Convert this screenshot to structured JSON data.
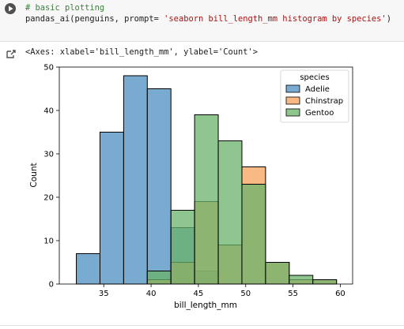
{
  "cell": {
    "run_icon": "play-icon",
    "code_comment": "# basic plotting",
    "code_call": "pandas_ai(penguins, prompt= ",
    "code_string": "'seaborn bill_length_mm histogram by species'",
    "code_close": ")"
  },
  "output": {
    "icon": "output-arrow-icon",
    "text": "<Axes: xlabel='bill_length_mm', ylabel='Count'>"
  },
  "chart_data": {
    "type": "histogram",
    "xlabel": "bill_length_mm",
    "ylabel": "Count",
    "xlim": [
      30.3,
      61.3
    ],
    "ylim": [
      0,
      50
    ],
    "xticks": [
      35,
      40,
      45,
      50,
      55,
      60
    ],
    "yticks": [
      0,
      10,
      20,
      30,
      40,
      50
    ],
    "bin_edges": [
      32.1,
      34.6,
      37.1,
      39.6,
      42.1,
      44.6,
      47.1,
      49.6,
      52.1,
      54.6,
      57.1,
      59.6
    ],
    "legend": {
      "title": "species",
      "position": "upper right"
    },
    "series": [
      {
        "name": "Adelie",
        "color": "#4c8fc0",
        "values": [
          7,
          35,
          48,
          45,
          13,
          3,
          0,
          0,
          0,
          0,
          0
        ]
      },
      {
        "name": "Chinstrap",
        "color": "#f5a15c",
        "values": [
          0,
          0,
          0,
          1,
          5,
          19,
          9,
          27,
          5,
          1,
          1
        ]
      },
      {
        "name": "Gentoo",
        "color": "#6ab36a",
        "values": [
          0,
          0,
          0,
          3,
          17,
          39,
          33,
          23,
          5,
          2,
          1
        ]
      }
    ]
  }
}
